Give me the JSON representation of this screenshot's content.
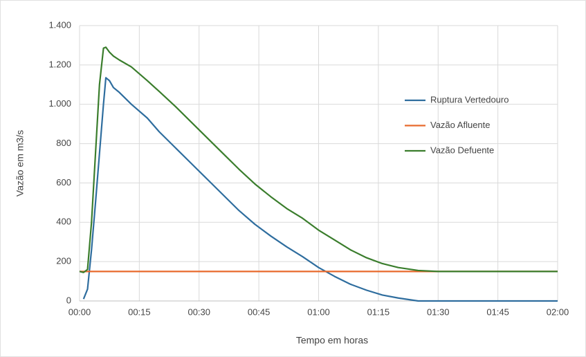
{
  "chart_data": {
    "type": "line",
    "x_label": "Tempo em horas",
    "y_label": "Vazão em m3/s",
    "x": [
      0,
      1,
      2,
      3,
      4,
      5,
      6,
      6.6,
      7.5,
      8.5,
      10,
      13,
      17,
      20,
      24,
      28,
      32,
      36,
      40,
      44,
      48,
      52,
      56,
      60,
      64,
      68,
      72,
      76,
      80,
      85,
      90,
      100,
      110,
      120
    ],
    "series": [
      {
        "name": "Ruptura Vertedouro",
        "color": "#2e6d9e",
        "values": [
          null,
          10,
          60,
          260,
          500,
          750,
          1000,
          1135,
          1120,
          1085,
          1060,
          1000,
          930,
          860,
          780,
          700,
          620,
          540,
          460,
          390,
          330,
          275,
          225,
          170,
          125,
          85,
          55,
          30,
          15,
          0,
          0,
          0,
          0,
          0
        ]
      },
      {
        "name": "Vazão Afluente",
        "color": "#e8692c",
        "values": [
          150,
          150,
          150,
          150,
          150,
          150,
          150,
          150,
          150,
          150,
          150,
          150,
          150,
          150,
          150,
          150,
          150,
          150,
          150,
          150,
          150,
          150,
          150,
          150,
          150,
          150,
          150,
          150,
          150,
          150,
          150,
          150,
          150,
          150
        ]
      },
      {
        "name": "Vazão Defuente",
        "color": "#3a7d2c",
        "values": [
          150,
          145,
          160,
          400,
          750,
          1100,
          1285,
          1290,
          1265,
          1245,
          1225,
          1190,
          1120,
          1065,
          990,
          910,
          830,
          750,
          670,
          595,
          530,
          470,
          420,
          360,
          310,
          260,
          220,
          190,
          170,
          155,
          150,
          150,
          150,
          150
        ]
      }
    ],
    "xlim": [
      0,
      120
    ],
    "xticks": [
      {
        "value": 0,
        "label": "00:00"
      },
      {
        "value": 15,
        "label": "00:15"
      },
      {
        "value": 30,
        "label": "00:30"
      },
      {
        "value": 45,
        "label": "00:45"
      },
      {
        "value": 60,
        "label": "01:00"
      },
      {
        "value": 75,
        "label": "01:15"
      },
      {
        "value": 90,
        "label": "01:30"
      },
      {
        "value": 105,
        "label": "01:45"
      },
      {
        "value": 120,
        "label": "02:00"
      }
    ],
    "ylim": [
      0,
      1400
    ],
    "yticks": [
      0,
      200,
      400,
      600,
      800,
      {
        "value": 1000,
        "label": "1.000"
      },
      {
        "value": 1200,
        "label": "1.200"
      },
      {
        "value": 1400,
        "label": "1.400"
      }
    ],
    "grid": true
  }
}
